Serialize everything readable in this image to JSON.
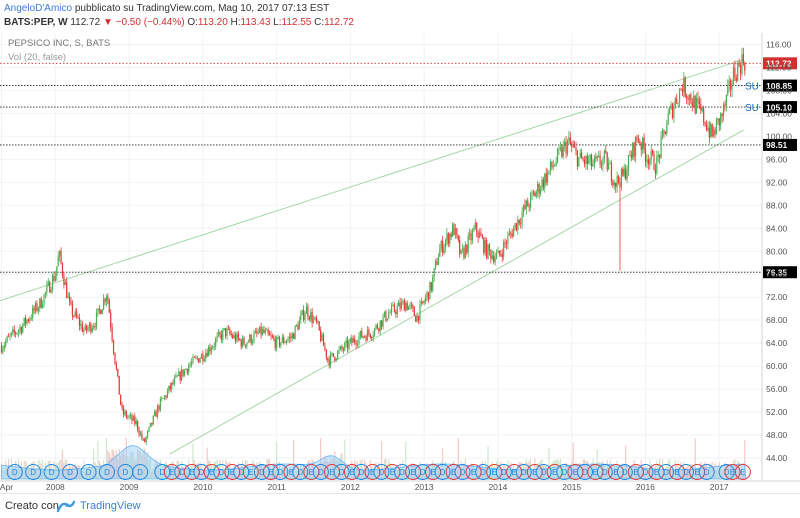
{
  "header": {
    "author": "AngeloD'Amico",
    "published": "pubblicato su TradingView.com, Mag 10, 2017 07:13 EST",
    "symbol": "BATS:PEP, W",
    "last": "112.72",
    "change": "−0.50 (−0.44%)",
    "open_label": "O:",
    "open": "113.20",
    "high_label": "H:",
    "high": "113.43",
    "low_label": "L:",
    "low": "112.55",
    "close_label": "C:",
    "close": "112.72"
  },
  "legend": {
    "title": "PEPSICO INC, S, BATS",
    "volume": "Vol (20, false)"
  },
  "footer": {
    "created_with": "Creato con",
    "brand": "TradingView"
  },
  "colors": {
    "up": "#4caf50",
    "down": "#e53935",
    "trend": "#a5d6a7",
    "volume_area": "#90caf9",
    "last_price": "#d32f2f",
    "level_label": "#000000",
    "dividend": "#1e88e5",
    "earnings": "#e53935"
  },
  "chart_data": {
    "type": "candlestick",
    "title": "PEPSICO INC, S, BATS",
    "interval": "W",
    "ylim": [
      40,
      118
    ],
    "xlim": [
      2007.25,
      2017.58
    ],
    "y_ticks": [
      44,
      48,
      52,
      56,
      60,
      64,
      68,
      72,
      76,
      80,
      84,
      88,
      92,
      96,
      100,
      104,
      108,
      112,
      116
    ],
    "x_ticks": [
      {
        "label": "Apr",
        "x": 2007.27
      },
      {
        "label": "2008",
        "x": 2008.0
      },
      {
        "label": "2009",
        "x": 2009.0
      },
      {
        "label": "2010",
        "x": 2010.0
      },
      {
        "label": "2011",
        "x": 2011.0
      },
      {
        "label": "2012",
        "x": 2012.0
      },
      {
        "label": "2013",
        "x": 2013.0
      },
      {
        "label": "2014",
        "x": 2014.0
      },
      {
        "label": "2015",
        "x": 2015.0
      },
      {
        "label": "2016",
        "x": 2016.0
      },
      {
        "label": "2017",
        "x": 2017.0
      }
    ],
    "price_path": [
      [
        2007.27,
        63.5
      ],
      [
        2007.55,
        67
      ],
      [
        2007.8,
        71
      ],
      [
        2008.0,
        76
      ],
      [
        2008.05,
        79.5
      ],
      [
        2008.2,
        70
      ],
      [
        2008.4,
        66
      ],
      [
        2008.55,
        68
      ],
      [
        2008.7,
        73
      ],
      [
        2008.8,
        62
      ],
      [
        2008.9,
        52
      ],
      [
        2009.1,
        50
      ],
      [
        2009.2,
        46.5
      ],
      [
        2009.4,
        53
      ],
      [
        2009.6,
        57
      ],
      [
        2009.8,
        60
      ],
      [
        2010.0,
        62
      ],
      [
        2010.3,
        66
      ],
      [
        2010.55,
        64
      ],
      [
        2010.8,
        66
      ],
      [
        2011.0,
        64
      ],
      [
        2011.2,
        65
      ],
      [
        2011.4,
        70
      ],
      [
        2011.55,
        67
      ],
      [
        2011.7,
        61
      ],
      [
        2011.9,
        63
      ],
      [
        2012.1,
        65
      ],
      [
        2012.3,
        66
      ],
      [
        2012.5,
        69
      ],
      [
        2012.75,
        71
      ],
      [
        2012.9,
        68.5
      ],
      [
        2013.1,
        74
      ],
      [
        2013.2,
        80
      ],
      [
        2013.4,
        84
      ],
      [
        2013.5,
        79
      ],
      [
        2013.7,
        84
      ],
      [
        2013.85,
        80
      ],
      [
        2014.0,
        79
      ],
      [
        2014.3,
        86
      ],
      [
        2014.55,
        91
      ],
      [
        2014.8,
        96
      ],
      [
        2014.95,
        99
      ],
      [
        2015.1,
        96
      ],
      [
        2015.3,
        95
      ],
      [
        2015.45,
        96
      ],
      [
        2015.6,
        92
      ],
      [
        2015.7,
        93
      ],
      [
        2015.9,
        100
      ],
      [
        2016.0,
        97
      ],
      [
        2016.15,
        95
      ],
      [
        2016.3,
        103
      ],
      [
        2016.5,
        109
      ],
      [
        2016.65,
        106
      ],
      [
        2016.8,
        103
      ],
      [
        2016.9,
        100
      ],
      [
        2017.05,
        104
      ],
      [
        2017.2,
        111
      ],
      [
        2017.33,
        113.5
      ],
      [
        2017.36,
        112.72
      ]
    ],
    "spike_low": {
      "x": 2015.66,
      "low": 76.6
    },
    "trendlines": [
      {
        "from": [
          2007.25,
          71.4
        ],
        "to": [
          2017.33,
          113.4
        ]
      },
      {
        "from": [
          2009.55,
          44.7
        ],
        "to": [
          2017.33,
          101.1
        ]
      }
    ],
    "levels": [
      {
        "value": 112.72,
        "label": "112.72",
        "style": "last"
      },
      {
        "value": 108.85,
        "label": "108.85",
        "tag": "SU"
      },
      {
        "value": 105.1,
        "label": "105.10",
        "tag": "SU"
      },
      {
        "value": 98.51,
        "label": "98.51"
      },
      {
        "value": 76.35,
        "label": "76.35"
      }
    ],
    "volume_scale_ylim": [
      0,
      1
    ],
    "event_markers": [
      {
        "x": 2007.45,
        "kind": "D"
      },
      {
        "x": 2007.7,
        "kind": "D"
      },
      {
        "x": 2007.95,
        "kind": "D"
      },
      {
        "x": 2008.2,
        "kind": "D"
      },
      {
        "x": 2008.45,
        "kind": "D"
      },
      {
        "x": 2008.7,
        "kind": "D"
      },
      {
        "x": 2008.95,
        "kind": "D"
      },
      {
        "x": 2009.15,
        "kind": "D"
      },
      {
        "x": 2009.45,
        "kind": "D"
      },
      {
        "x": 2009.58,
        "kind": "E"
      },
      {
        "x": 2009.72,
        "kind": "D"
      },
      {
        "x": 2009.85,
        "kind": "E"
      },
      {
        "x": 2009.98,
        "kind": "D"
      },
      {
        "x": 2010.12,
        "kind": "E"
      },
      {
        "x": 2010.25,
        "kind": "D"
      },
      {
        "x": 2010.4,
        "kind": "E"
      },
      {
        "x": 2010.52,
        "kind": "D"
      },
      {
        "x": 2010.65,
        "kind": "E"
      },
      {
        "x": 2010.8,
        "kind": "D"
      },
      {
        "x": 2010.92,
        "kind": "E"
      },
      {
        "x": 2011.05,
        "kind": "D"
      },
      {
        "x": 2011.2,
        "kind": "E"
      },
      {
        "x": 2011.32,
        "kind": "D"
      },
      {
        "x": 2011.47,
        "kind": "E"
      },
      {
        "x": 2011.6,
        "kind": "D"
      },
      {
        "x": 2011.75,
        "kind": "E"
      },
      {
        "x": 2011.88,
        "kind": "D"
      },
      {
        "x": 2012.02,
        "kind": "E"
      },
      {
        "x": 2012.15,
        "kind": "D"
      },
      {
        "x": 2012.3,
        "kind": "E"
      },
      {
        "x": 2012.42,
        "kind": "D"
      },
      {
        "x": 2012.57,
        "kind": "E"
      },
      {
        "x": 2012.7,
        "kind": "D"
      },
      {
        "x": 2012.85,
        "kind": "E"
      },
      {
        "x": 2012.98,
        "kind": "D"
      },
      {
        "x": 2013.12,
        "kind": "E"
      },
      {
        "x": 2013.25,
        "kind": "D"
      },
      {
        "x": 2013.4,
        "kind": "E"
      },
      {
        "x": 2013.52,
        "kind": "D"
      },
      {
        "x": 2013.67,
        "kind": "E"
      },
      {
        "x": 2013.8,
        "kind": "D"
      },
      {
        "x": 2013.95,
        "kind": "E"
      },
      {
        "x": 2014.08,
        "kind": "D"
      },
      {
        "x": 2014.22,
        "kind": "E"
      },
      {
        "x": 2014.35,
        "kind": "D"
      },
      {
        "x": 2014.5,
        "kind": "E"
      },
      {
        "x": 2014.62,
        "kind": "D"
      },
      {
        "x": 2014.77,
        "kind": "E"
      },
      {
        "x": 2014.9,
        "kind": "D"
      },
      {
        "x": 2015.05,
        "kind": "E"
      },
      {
        "x": 2015.18,
        "kind": "D"
      },
      {
        "x": 2015.32,
        "kind": "E"
      },
      {
        "x": 2015.45,
        "kind": "D"
      },
      {
        "x": 2015.6,
        "kind": "E"
      },
      {
        "x": 2015.72,
        "kind": "D"
      },
      {
        "x": 2015.87,
        "kind": "E"
      },
      {
        "x": 2016.0,
        "kind": "D"
      },
      {
        "x": 2016.15,
        "kind": "E"
      },
      {
        "x": 2016.28,
        "kind": "D"
      },
      {
        "x": 2016.43,
        "kind": "E"
      },
      {
        "x": 2016.55,
        "kind": "D"
      },
      {
        "x": 2016.7,
        "kind": "E"
      },
      {
        "x": 2016.83,
        "kind": "D"
      },
      {
        "x": 2017.1,
        "kind": "D"
      },
      {
        "x": 2017.18,
        "kind": "E"
      },
      {
        "x": 2017.32,
        "kind": "E"
      }
    ]
  }
}
